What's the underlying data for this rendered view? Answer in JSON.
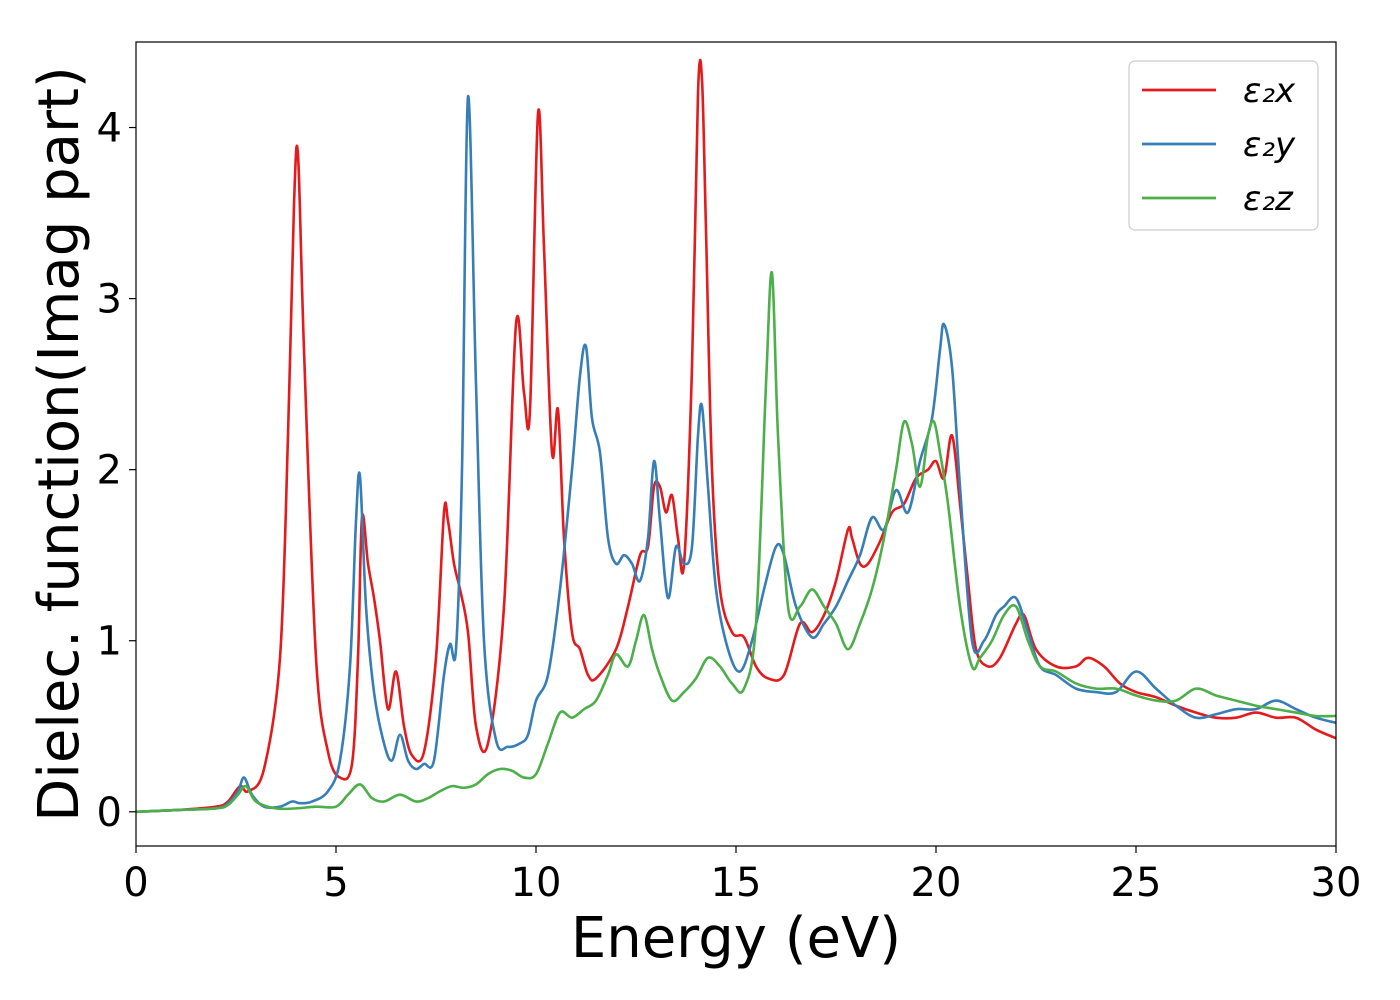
{
  "chart_data": {
    "type": "line",
    "xlabel": "Energy (eV)",
    "ylabel": "Dielec. function(Imag part)",
    "xlim": [
      0,
      30
    ],
    "ylim": [
      -0.2,
      4.5
    ],
    "xticks": [
      0,
      5,
      10,
      15,
      20,
      25,
      30
    ],
    "xtick_labels": [
      "0",
      "5",
      "10",
      "15",
      "20",
      "25",
      "30"
    ],
    "yticks": [
      0,
      1,
      2,
      3,
      4
    ],
    "ytick_labels": [
      "0",
      "1",
      "2",
      "3",
      "4"
    ],
    "grid": false,
    "legend_position": "top-right",
    "series": [
      {
        "name": "ε₂x",
        "color": "#e41a1c",
        "x": [
          0,
          1,
          2,
          2.3,
          2.6,
          2.8,
          3.2,
          3.6,
          3.8,
          3.95,
          4.05,
          4.2,
          4.5,
          4.8,
          5.1,
          5.4,
          5.55,
          5.65,
          5.8,
          5.95,
          6.1,
          6.3,
          6.5,
          6.7,
          6.9,
          7.2,
          7.5,
          7.7,
          7.8,
          7.95,
          8.1,
          8.3,
          8.5,
          8.8,
          9.2,
          9.5,
          9.7,
          9.85,
          10.05,
          10.2,
          10.4,
          10.55,
          10.7,
          10.9,
          11.1,
          11.3,
          11.5,
          12.0,
          12.3,
          12.6,
          12.8,
          12.95,
          13.1,
          13.25,
          13.4,
          13.55,
          13.7,
          13.9,
          14.05,
          14.15,
          14.25,
          14.4,
          14.6,
          14.9,
          15.2,
          15.5,
          15.8,
          16.2,
          16.6,
          16.9,
          17.2,
          17.5,
          17.8,
          17.9,
          18.1,
          18.3,
          18.6,
          18.9,
          19.2,
          19.5,
          19.8,
          20.0,
          20.2,
          20.4,
          20.6,
          20.8,
          21.0,
          21.3,
          21.6,
          22.0,
          22.2,
          22.5,
          23.0,
          23.5,
          23.8,
          24.2,
          24.6,
          25.0,
          25.5,
          26.0,
          26.5,
          27.0,
          27.5,
          28.0,
          28.5,
          29.0,
          29.5,
          30.0
        ],
        "y": [
          0.0,
          0.01,
          0.03,
          0.06,
          0.15,
          0.12,
          0.25,
          0.9,
          2.2,
          3.55,
          3.84,
          2.7,
          0.9,
          0.35,
          0.2,
          0.28,
          0.9,
          1.72,
          1.45,
          1.25,
          1.0,
          0.6,
          0.82,
          0.5,
          0.33,
          0.35,
          0.9,
          1.75,
          1.7,
          1.45,
          1.3,
          1.05,
          0.5,
          0.4,
          1.2,
          2.85,
          2.45,
          2.35,
          4.08,
          3.3,
          2.1,
          2.35,
          1.6,
          1.05,
          0.95,
          0.8,
          0.78,
          0.95,
          1.2,
          1.5,
          1.55,
          1.9,
          1.9,
          1.75,
          1.85,
          1.6,
          1.45,
          2.6,
          4.2,
          4.28,
          3.4,
          2.0,
          1.3,
          1.05,
          1.02,
          0.85,
          0.78,
          0.8,
          1.1,
          1.05,
          1.15,
          1.35,
          1.65,
          1.6,
          1.45,
          1.45,
          1.58,
          1.75,
          1.8,
          1.95,
          2.0,
          2.05,
          1.95,
          2.2,
          1.8,
          1.35,
          0.95,
          0.85,
          0.9,
          1.1,
          1.15,
          0.95,
          0.85,
          0.85,
          0.9,
          0.85,
          0.75,
          0.7,
          0.67,
          0.62,
          0.58,
          0.55,
          0.55,
          0.58,
          0.55,
          0.55,
          0.48,
          0.43
        ]
      },
      {
        "name": "ε₂y",
        "color": "#377eb8",
        "x": [
          0,
          1,
          2,
          2.3,
          2.55,
          2.7,
          2.9,
          3.2,
          3.6,
          3.9,
          4.1,
          4.4,
          4.8,
          5.1,
          5.35,
          5.5,
          5.6,
          5.75,
          5.95,
          6.2,
          6.4,
          6.6,
          6.8,
          7.0,
          7.2,
          7.45,
          7.7,
          7.85,
          8.0,
          8.15,
          8.3,
          8.5,
          8.7,
          9.0,
          9.3,
          9.6,
          9.8,
          10.0,
          10.3,
          10.6,
          10.9,
          11.1,
          11.25,
          11.4,
          11.6,
          11.8,
          12.0,
          12.2,
          12.4,
          12.6,
          12.8,
          12.95,
          13.1,
          13.3,
          13.5,
          13.7,
          13.9,
          14.05,
          14.15,
          14.3,
          14.5,
          14.8,
          15.1,
          15.4,
          15.7,
          16.0,
          16.2,
          16.5,
          16.9,
          17.2,
          17.5,
          17.8,
          18.1,
          18.4,
          18.7,
          19.0,
          19.3,
          19.6,
          19.9,
          20.1,
          20.2,
          20.4,
          20.6,
          20.9,
          21.2,
          21.5,
          21.7,
          22.0,
          22.3,
          22.6,
          23.0,
          23.5,
          24.0,
          24.5,
          25.0,
          25.5,
          26.0,
          26.5,
          27.0,
          27.5,
          28.0,
          28.5,
          29.0,
          29.5,
          30.0
        ],
        "y": [
          0.0,
          0.01,
          0.02,
          0.05,
          0.12,
          0.2,
          0.1,
          0.03,
          0.03,
          0.06,
          0.05,
          0.06,
          0.12,
          0.3,
          0.85,
          1.7,
          1.96,
          1.2,
          0.7,
          0.4,
          0.3,
          0.45,
          0.3,
          0.25,
          0.28,
          0.3,
          0.8,
          0.98,
          0.95,
          2.0,
          4.18,
          2.5,
          1.0,
          0.42,
          0.38,
          0.4,
          0.45,
          0.65,
          0.8,
          1.3,
          2.0,
          2.55,
          2.72,
          2.3,
          2.1,
          1.6,
          1.45,
          1.5,
          1.45,
          1.35,
          1.6,
          2.05,
          1.7,
          1.25,
          1.55,
          1.45,
          1.55,
          2.2,
          2.37,
          1.9,
          1.3,
          0.95,
          0.82,
          1.0,
          1.3,
          1.55,
          1.5,
          1.2,
          1.02,
          1.1,
          1.2,
          1.35,
          1.5,
          1.72,
          1.65,
          1.88,
          1.75,
          2.05,
          2.3,
          2.7,
          2.85,
          2.6,
          1.9,
          1.0,
          1.0,
          1.15,
          1.2,
          1.25,
          1.05,
          0.85,
          0.8,
          0.72,
          0.7,
          0.7,
          0.82,
          0.72,
          0.62,
          0.55,
          0.57,
          0.6,
          0.6,
          0.65,
          0.6,
          0.55,
          0.52
        ]
      },
      {
        "name": "ε₂z",
        "color": "#4daf4a",
        "x": [
          0,
          1,
          2,
          2.3,
          2.55,
          2.75,
          3.0,
          3.5,
          4.0,
          4.5,
          5.0,
          5.3,
          5.6,
          5.9,
          6.2,
          6.6,
          7.0,
          7.3,
          7.6,
          7.9,
          8.2,
          8.5,
          8.8,
          9.1,
          9.4,
          9.7,
          10.0,
          10.3,
          10.6,
          10.9,
          11.2,
          11.5,
          11.8,
          12.0,
          12.3,
          12.5,
          12.7,
          12.9,
          13.1,
          13.4,
          13.7,
          14.0,
          14.3,
          14.6,
          14.9,
          15.2,
          15.5,
          15.75,
          15.9,
          16.05,
          16.3,
          16.6,
          16.9,
          17.2,
          17.5,
          17.8,
          18.1,
          18.4,
          18.7,
          19.0,
          19.2,
          19.4,
          19.6,
          19.8,
          19.95,
          20.1,
          20.3,
          20.6,
          20.9,
          21.1,
          21.4,
          21.7,
          22.0,
          22.3,
          22.6,
          23.0,
          23.5,
          24.0,
          24.5,
          25.0,
          25.5,
          26.0,
          26.5,
          27.0,
          27.5,
          28.0,
          28.5,
          29.0,
          29.5,
          30.0
        ],
        "y": [
          0.0,
          0.01,
          0.02,
          0.04,
          0.1,
          0.15,
          0.06,
          0.02,
          0.02,
          0.03,
          0.03,
          0.1,
          0.16,
          0.08,
          0.06,
          0.1,
          0.06,
          0.08,
          0.12,
          0.15,
          0.14,
          0.16,
          0.22,
          0.25,
          0.24,
          0.2,
          0.22,
          0.4,
          0.58,
          0.55,
          0.6,
          0.65,
          0.8,
          0.92,
          0.85,
          1.0,
          1.15,
          0.95,
          0.8,
          0.65,
          0.7,
          0.78,
          0.9,
          0.85,
          0.75,
          0.72,
          1.1,
          2.5,
          3.15,
          2.2,
          1.2,
          1.2,
          1.3,
          1.2,
          1.1,
          0.95,
          1.1,
          1.3,
          1.6,
          2.0,
          2.28,
          2.15,
          1.9,
          2.2,
          2.28,
          2.1,
          1.8,
          1.2,
          0.85,
          0.9,
          1.0,
          1.15,
          1.2,
          1.0,
          0.85,
          0.82,
          0.75,
          0.72,
          0.72,
          0.68,
          0.65,
          0.65,
          0.72,
          0.68,
          0.65,
          0.62,
          0.6,
          0.58,
          0.56,
          0.56
        ]
      }
    ]
  }
}
